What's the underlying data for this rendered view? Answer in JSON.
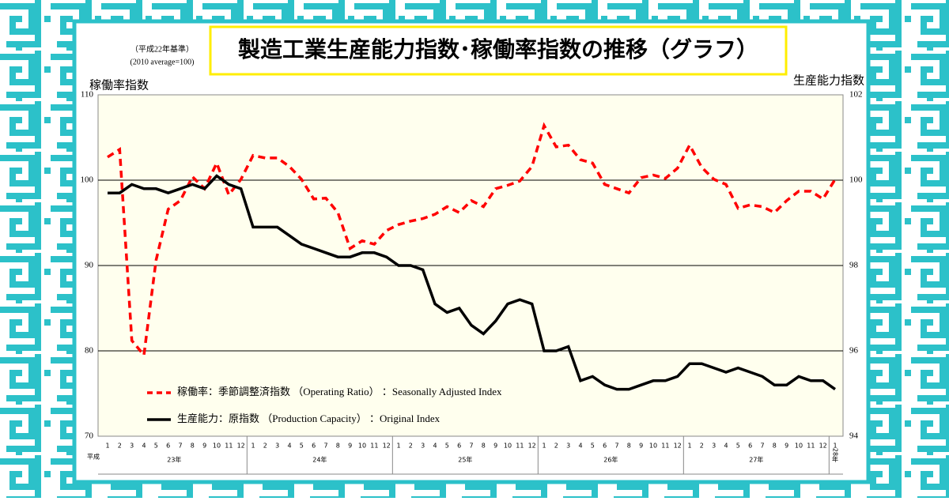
{
  "chart_data": {
    "type": "line",
    "title": "製造工業生産能力指数･稼働率指数の推移（グラフ）",
    "notes": [
      "（平成22年基準）",
      "(2010 average=100)"
    ],
    "y_label": "稼働率指数",
    "y2_label": "生産能力指数",
    "categories": [
      "1",
      "2",
      "3",
      "4",
      "5",
      "6",
      "7",
      "8",
      "9",
      "10",
      "11",
      "12",
      "1",
      "2",
      "3",
      "4",
      "5",
      "6",
      "7",
      "8",
      "9",
      "10",
      "11",
      "12",
      "1",
      "2",
      "3",
      "4",
      "5",
      "6",
      "7",
      "8",
      "9",
      "10",
      "11",
      "12",
      "1",
      "2",
      "3",
      "4",
      "5",
      "6",
      "7",
      "8",
      "9",
      "10",
      "11",
      "12",
      "1",
      "2",
      "3",
      "4",
      "5",
      "6",
      "7",
      "8",
      "9",
      "10",
      "11",
      "12",
      "1"
    ],
    "era_label": "平成",
    "year_labels": [
      "23年",
      "24年",
      "25年",
      "26年",
      "27年",
      "28年"
    ],
    "ylim": [
      70,
      110
    ],
    "yticks": [
      70,
      80,
      90,
      100,
      110
    ],
    "y2lim": [
      94,
      102
    ],
    "y2ticks": [
      94,
      96,
      98,
      100,
      102
    ],
    "grid": true,
    "series": [
      {
        "name": "稼働率：季節調整済指数 （Operating Ratio） ：Seasonally Adjusted Index",
        "color": "#ff0000",
        "dash": true,
        "values": [
          102.7,
          103.6,
          81.2,
          79.5,
          90.6,
          96.6,
          97.6,
          100.4,
          99,
          102,
          98.3,
          100.1,
          102.9,
          102.6,
          102.6,
          101.6,
          100.1,
          97.8,
          97.9,
          96.2,
          92,
          92.9,
          92.5,
          94.1,
          94.8,
          95.2,
          95.5,
          96,
          96.9,
          96.2,
          97.6,
          96.9,
          99,
          99.4,
          99.9,
          101.6,
          106.4,
          103.9,
          104.1,
          102.4,
          102,
          99.5,
          99,
          98.5,
          100.3,
          100.6,
          100.2,
          101.4,
          104.1,
          101.5,
          100.1,
          99.5,
          96.7,
          97.1,
          96.9,
          96.2,
          97.6,
          98.7,
          98.7,
          97.8,
          100.1
        ]
      },
      {
        "name": "生産能力：原指数 （Production Capacity） ：Original Index",
        "color": "#000000",
        "dash": false,
        "axis": "y2",
        "values": [
          99.7,
          99.7,
          99.9,
          99.8,
          99.8,
          99.7,
          99.8,
          99.9,
          99.8,
          100.1,
          99.9,
          99.8,
          98.9,
          98.9,
          98.9,
          98.7,
          98.5,
          98.4,
          98.3,
          98.2,
          98.2,
          98.3,
          98.3,
          98.2,
          98,
          98,
          97.9,
          97.1,
          96.9,
          97,
          96.6,
          96.4,
          96.7,
          97.1,
          97.2,
          97.1,
          96,
          96,
          96.1,
          95.3,
          95.4,
          95.2,
          95.1,
          95.1,
          95.2,
          95.3,
          95.3,
          95.4,
          95.7,
          95.7,
          95.6,
          95.5,
          95.6,
          95.5,
          95.4,
          95.2,
          95.2,
          95.4,
          95.3,
          95.3,
          95.1
        ]
      }
    ]
  }
}
